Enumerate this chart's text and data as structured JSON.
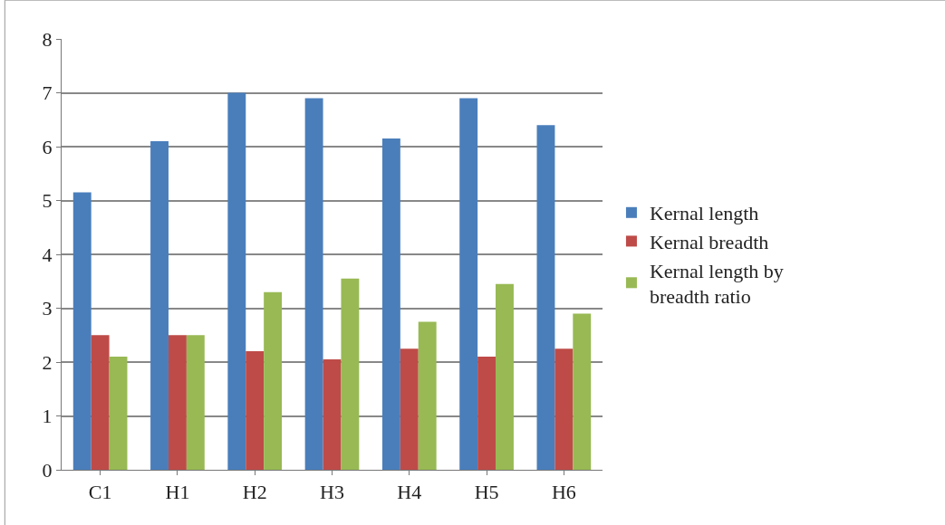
{
  "chart_data": {
    "type": "bar",
    "categories": [
      "C1",
      "H1",
      "H2",
      "H3",
      "H4",
      "H5",
      "H6"
    ],
    "series": [
      {
        "name": "Kernal length",
        "color": "#4a7ebb",
        "values": [
          5.15,
          6.1,
          7.0,
          6.9,
          6.15,
          6.9,
          6.4
        ]
      },
      {
        "name": "Kernal breadth",
        "color": "#be4b48",
        "values": [
          2.5,
          2.5,
          2.2,
          2.05,
          2.25,
          2.1,
          2.25
        ]
      },
      {
        "name": "Kernal length by breadth ratio",
        "color": "#98b954",
        "values": [
          2.1,
          2.5,
          3.3,
          3.55,
          2.75,
          3.45,
          2.9
        ]
      }
    ],
    "ylim": [
      0,
      8
    ],
    "yticks": [
      0,
      1,
      2,
      3,
      4,
      5,
      6,
      7,
      8
    ],
    "grid": "y",
    "legend": "right"
  }
}
